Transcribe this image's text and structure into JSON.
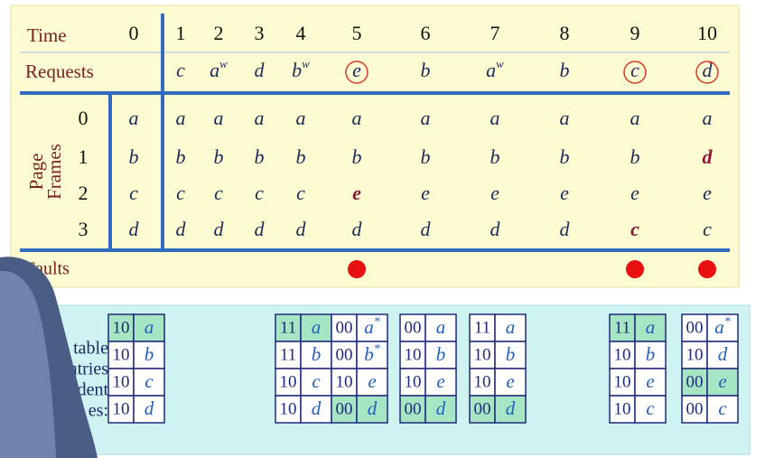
{
  "time_label": "Time",
  "times": [
    "0",
    "1",
    "2",
    "3",
    "4",
    "5",
    "6",
    "7",
    "8",
    "9",
    "10"
  ],
  "requests_label": "Requests",
  "requests": [
    {
      "time": 1,
      "page": "c"
    },
    {
      "time": 2,
      "page": "a",
      "sup": "w"
    },
    {
      "time": 3,
      "page": "d"
    },
    {
      "time": 4,
      "page": "b",
      "sup": "w"
    },
    {
      "time": 5,
      "page": "e",
      "circled": true
    },
    {
      "time": 6,
      "page": "b"
    },
    {
      "time": 7,
      "page": "a",
      "sup": "w"
    },
    {
      "time": 8,
      "page": "b"
    },
    {
      "time": 9,
      "page": "c",
      "circled": true
    },
    {
      "time": 10,
      "page": "d",
      "circled": true
    }
  ],
  "frames_label": [
    "Page",
    "Frames"
  ],
  "frame_ids": [
    "0",
    "1",
    "2",
    "3"
  ],
  "frames": [
    [
      "a",
      "a",
      "a",
      "a",
      "a",
      "a",
      "a",
      "a",
      "a",
      "a",
      "a"
    ],
    [
      "b",
      "b",
      "b",
      "b",
      "b",
      "b",
      "b",
      "b",
      "b",
      "b",
      "d"
    ],
    [
      "c",
      "c",
      "c",
      "c",
      "c",
      "e",
      "e",
      "e",
      "e",
      "e",
      "e"
    ],
    [
      "d",
      "d",
      "d",
      "d",
      "d",
      "d",
      "d",
      "d",
      "d",
      "c",
      "c"
    ]
  ],
  "replaced": [
    {
      "frame": 2,
      "time": 5
    },
    {
      "frame": 3,
      "time": 9
    },
    {
      "frame": 1,
      "time": 10
    }
  ],
  "faults_label": "Faults",
  "fault_times": [
    5,
    9,
    10
  ],
  "page_table_label": [
    "e table",
    "ntries",
    "dent",
    "es:"
  ],
  "page_tables": [
    {
      "time": 0,
      "entries": [
        {
          "bits": "10",
          "page": "a",
          "highlight": true
        },
        {
          "bits": "10",
          "page": "b"
        },
        {
          "bits": "10",
          "page": "c"
        },
        {
          "bits": "10",
          "page": "d"
        }
      ]
    },
    {
      "time": 4,
      "entries": [
        {
          "bits": "11",
          "page": "a",
          "highlight": true
        },
        {
          "bits": "11",
          "page": "b"
        },
        {
          "bits": "10",
          "page": "c"
        },
        {
          "bits": "10",
          "page": "d"
        }
      ]
    },
    {
      "time": 5,
      "entries": [
        {
          "bits": "00",
          "page": "a",
          "sup": "*"
        },
        {
          "bits": "00",
          "page": "b",
          "sup": "*"
        },
        {
          "bits": "10",
          "page": "e"
        },
        {
          "bits": "00",
          "page": "d",
          "highlight": true
        }
      ]
    },
    {
      "time": 6,
      "entries": [
        {
          "bits": "00",
          "page": "a"
        },
        {
          "bits": "10",
          "page": "b"
        },
        {
          "bits": "10",
          "page": "e"
        },
        {
          "bits": "00",
          "page": "d",
          "highlight": true
        }
      ]
    },
    {
      "time": 7,
      "entries": [
        {
          "bits": "11",
          "page": "a"
        },
        {
          "bits": "10",
          "page": "b"
        },
        {
          "bits": "10",
          "page": "e"
        },
        {
          "bits": "00",
          "page": "d",
          "highlight": true
        }
      ]
    },
    {
      "time": 9,
      "entries": [
        {
          "bits": "11",
          "page": "a",
          "highlight": true
        },
        {
          "bits": "10",
          "page": "b"
        },
        {
          "bits": "10",
          "page": "e"
        },
        {
          "bits": "10",
          "page": "c"
        }
      ]
    },
    {
      "time": 10,
      "entries": [
        {
          "bits": "00",
          "page": "a",
          "sup": "*"
        },
        {
          "bits": "10",
          "page": "d"
        },
        {
          "bits": "00",
          "page": "e",
          "highlight": true
        },
        {
          "bits": "00",
          "page": "c"
        }
      ]
    }
  ]
}
